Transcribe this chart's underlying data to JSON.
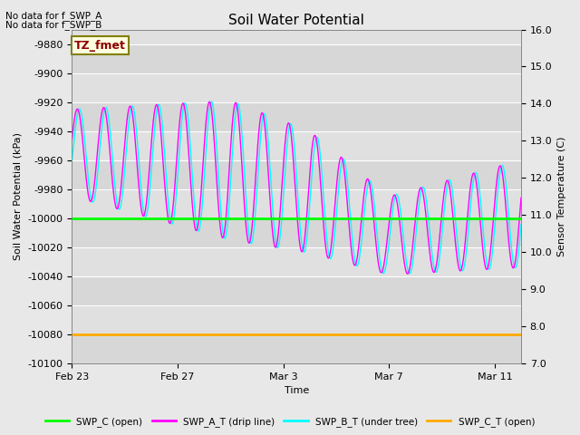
{
  "title": "Soil Water Potential",
  "ylabel_left": "Soil Water Potential (kPa)",
  "ylabel_right": "Sensor Temperature (C)",
  "xlabel": "Time",
  "ylim_left": [
    -10100,
    -9870
  ],
  "ylim_right": [
    7.0,
    16.0
  ],
  "xlim": [
    0,
    17
  ],
  "xtick_positions": [
    0,
    4,
    8,
    12,
    16
  ],
  "xtick_labels": [
    "Feb 23",
    "Feb 27",
    "Mar 3",
    "Mar 7",
    "Mar 11"
  ],
  "ytick_left": [
    -10100,
    -10080,
    -10060,
    -10040,
    -10020,
    -10000,
    -9980,
    -9960,
    -9940,
    -9920,
    -9900,
    -9880
  ],
  "ytick_right": [
    7.0,
    8.0,
    9.0,
    10.0,
    11.0,
    12.0,
    13.0,
    14.0,
    15.0,
    16.0
  ],
  "swp_c_value": -10000,
  "swp_c_t_value": -10080,
  "swp_c_color": "#00ff00",
  "swp_c_t_color": "#ffaa00",
  "swp_a_t_color": "#ff00ff",
  "swp_b_t_color": "#00ffff",
  "fig_bg_color": "#e8e8e8",
  "plot_bg_color": "#e0e0e0",
  "band_color": "#cccccc",
  "note1": "No data for f_SWP_A",
  "note2": "No data for f_SWP_B",
  "tz_label": "TZ_fmet",
  "legend_labels": [
    "SWP_C (open)",
    "SWP_A_T (drip line)",
    "SWP_B_T (under tree)",
    "SWP_C_T (open)"
  ]
}
